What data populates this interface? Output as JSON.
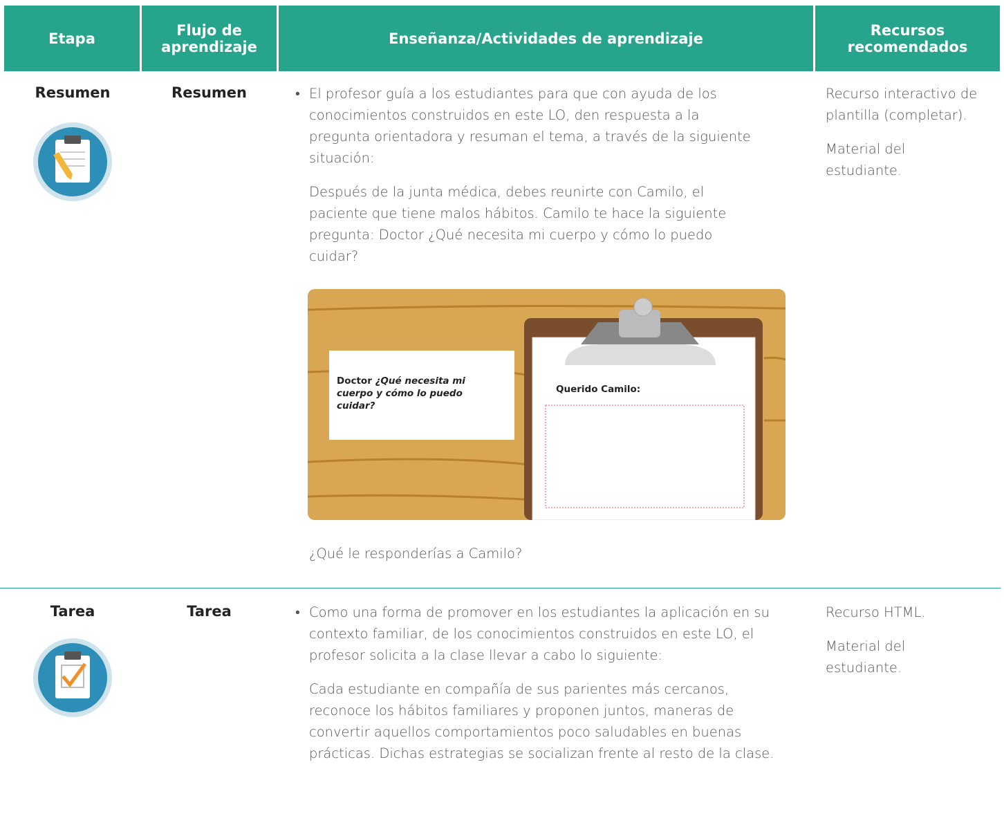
{
  "header": {
    "columns": [
      "Etapa",
      "Flujo de aprendizaje",
      "Enseñanza/Actividades de aprendizaje",
      "Recursos recomendados"
    ]
  },
  "rows": [
    {
      "etapa": "Resumen",
      "flujo": "Resumen",
      "ensenanza": [
        "El profesor guía a los estudiantes para que con ayuda de los conocimientos construidos en este LO, den respuesta a la pregunta orientadora y resuman el tema, a través de la siguiente situación:",
        "Después de la junta médica, debes reunirte con Camilo, el paciente que tiene malos hábitos. Camilo te hace la siguiente pregunta: Doctor ¿Qué necesita mi cuerpo y cómo lo puedo cuidar?",
        "¿Qué le responderías a Camilo?"
      ],
      "image": {
        "card_label": "Doctor",
        "card_question": "¿Qué necesita mi cuerpo y cómo lo puedo cuidar?",
        "letter_greeting": "Querido Camilo:"
      },
      "recursos": [
        "Recurso interactivo de plantilla (completar).",
        "Material del estudiante."
      ]
    },
    {
      "etapa": "Tarea",
      "flujo": "Tarea",
      "ensenanza": [
        "Como una forma de promover en los estudiantes la aplicación en su contexto familiar, de los conocimientos construidos en este LO, el profesor solicita a la clase llevar a cabo lo siguiente:",
        "Cada estudiante en compañía de sus parientes más cercanos, reconoce los hábitos familiares y proponen juntos, maneras de convertir aquellos comportamientos poco saludables en buenas prácticas. Dichas estrategias se socializan frente al resto de la clase."
      ],
      "recursos": [
        "Recurso HTML.",
        "Material del estudiante."
      ]
    }
  ]
}
